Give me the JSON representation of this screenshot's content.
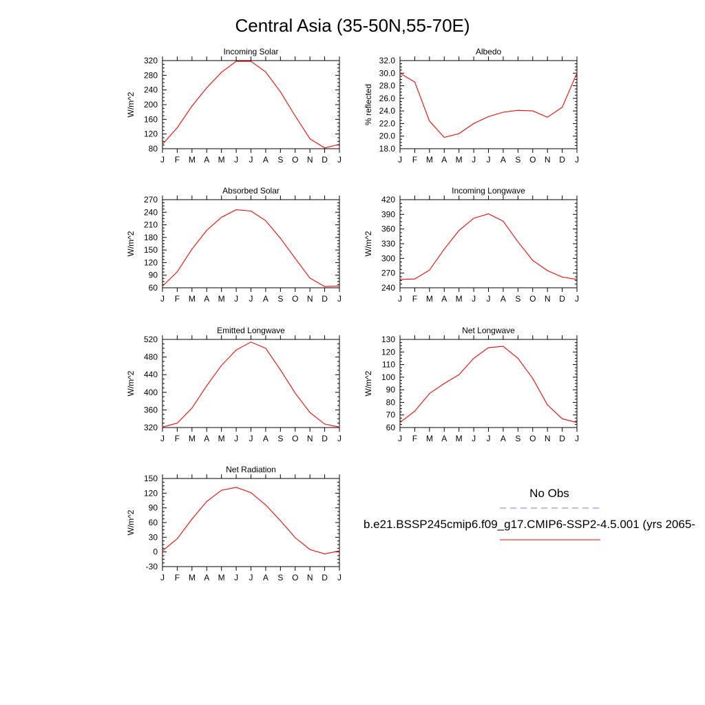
{
  "title": "Central Asia (35-50N,55-70E)",
  "months": [
    "J",
    "F",
    "M",
    "A",
    "M",
    "J",
    "J",
    "A",
    "S",
    "O",
    "N",
    "D",
    "J"
  ],
  "legend": {
    "obs_label": "No Obs",
    "obs_color": "#7777ff",
    "model_label": "b.e21.BSSP245cmip6.f09_g17.CMIP6-SSP2-4.5.001 (yrs 2065-",
    "model_color": "#ff0000"
  },
  "chart_data": [
    {
      "type": "line",
      "title": "Incoming Solar",
      "ylabel": "W/m^2",
      "ylim": [
        80,
        320
      ],
      "yticks": [
        "80",
        "120",
        "160",
        "200",
        "240",
        "280",
        "320"
      ],
      "x": [
        "J",
        "F",
        "M",
        "A",
        "M",
        "J",
        "J",
        "A",
        "S",
        "O",
        "N",
        "D",
        "J"
      ],
      "series": [
        {
          "values": [
            92,
            137,
            196,
            246,
            288,
            318,
            318,
            289,
            235,
            169,
            107,
            82,
            92
          ]
        }
      ]
    },
    {
      "type": "line",
      "title": "Albedo",
      "ylabel": "% reflected",
      "ylim": [
        18,
        32
      ],
      "yticks": [
        "18.0",
        "20.0",
        "22.0",
        "24.0",
        "26.0",
        "28.0",
        "30.0",
        "32.0"
      ],
      "x": [
        "J",
        "F",
        "M",
        "A",
        "M",
        "J",
        "J",
        "A",
        "S",
        "O",
        "N",
        "D",
        "J"
      ],
      "series": [
        {
          "values": [
            30.0,
            28.6,
            22.4,
            19.8,
            20.4,
            22.0,
            23.1,
            23.8,
            24.1,
            24.0,
            23.0,
            24.6,
            30.0
          ]
        }
      ]
    },
    {
      "type": "line",
      "title": "Absorbed Solar",
      "ylabel": "W/m^2",
      "ylim": [
        60,
        270
      ],
      "yticks": [
        "60",
        "90",
        "120",
        "150",
        "180",
        "210",
        "240",
        "270"
      ],
      "x": [
        "J",
        "F",
        "M",
        "A",
        "M",
        "J",
        "J",
        "A",
        "S",
        "O",
        "N",
        "D",
        "J"
      ],
      "series": [
        {
          "values": [
            64,
            98,
            152,
            197,
            228,
            246,
            243,
            220,
            178,
            130,
            83,
            63,
            64
          ]
        }
      ]
    },
    {
      "type": "line",
      "title": "Incoming Longwave",
      "ylabel": "W/m^2",
      "ylim": [
        240,
        420
      ],
      "yticks": [
        "240",
        "270",
        "300",
        "330",
        "360",
        "390",
        "420"
      ],
      "x": [
        "J",
        "F",
        "M",
        "A",
        "M",
        "J",
        "J",
        "A",
        "S",
        "O",
        "N",
        "D",
        "J"
      ],
      "series": [
        {
          "values": [
            257,
            258,
            276,
            319,
            357,
            382,
            391,
            376,
            334,
            296,
            275,
            262,
            257
          ]
        }
      ]
    },
    {
      "type": "line",
      "title": "Emitted Longwave",
      "ylabel": "W/m^2",
      "ylim": [
        320,
        520
      ],
      "yticks": [
        "320",
        "360",
        "400",
        "440",
        "480",
        "520"
      ],
      "x": [
        "J",
        "F",
        "M",
        "A",
        "M",
        "J",
        "J",
        "A",
        "S",
        "O",
        "N",
        "D",
        "J"
      ],
      "series": [
        {
          "values": [
            321,
            330,
            364,
            415,
            461,
            496,
            514,
            500,
            451,
            398,
            354,
            328,
            321
          ]
        }
      ]
    },
    {
      "type": "line",
      "title": "Net Longwave",
      "ylabel": "W/m^2",
      "ylim": [
        60,
        130
      ],
      "yticks": [
        "60",
        "70",
        "80",
        "90",
        "100",
        "110",
        "120",
        "130"
      ],
      "x": [
        "J",
        "F",
        "M",
        "A",
        "M",
        "J",
        "J",
        "A",
        "S",
        "O",
        "N",
        "D",
        "J"
      ],
      "series": [
        {
          "values": [
            64,
            73,
            87,
            95,
            102,
            115,
            123.5,
            124.5,
            115,
            99,
            78,
            67,
            64
          ]
        }
      ]
    },
    {
      "type": "line",
      "title": "Net Radiation",
      "ylabel": "W/m^2",
      "ylim": [
        -30,
        150
      ],
      "yticks": [
        "-30",
        "0",
        "30",
        "60",
        "90",
        "120",
        "150"
      ],
      "x": [
        "J",
        "F",
        "M",
        "A",
        "M",
        "J",
        "J",
        "A",
        "S",
        "O",
        "N",
        "D",
        "J"
      ],
      "series": [
        {
          "values": [
            2,
            27,
            67,
            103,
            126,
            132,
            121,
            96,
            64,
            29,
            5,
            -4,
            2
          ]
        }
      ]
    }
  ]
}
